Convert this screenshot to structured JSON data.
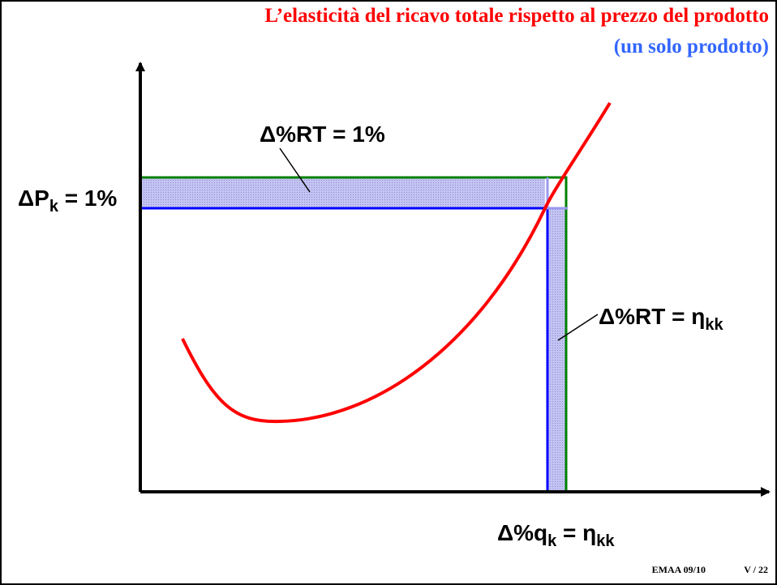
{
  "header": {
    "title": "L’elasticità del ricavo totale rispetto al prezzo del prodotto",
    "subtitle": "(un solo prodotto)"
  },
  "labels": {
    "rt_price": {
      "text": "Δ%RT = 1%"
    },
    "price": {
      "main": "ΔP",
      "sub": "k",
      "rest": " = 1%"
    },
    "rt_quantity": {
      "main": "Δ%RT = η",
      "sub": "kk"
    },
    "quantity": {
      "main": "Δ%q",
      "sub": "k",
      "mid": " = η",
      "sub2": "kk"
    }
  },
  "footer": {
    "course": "EMAA 09/10",
    "page": "V / 22"
  }
}
